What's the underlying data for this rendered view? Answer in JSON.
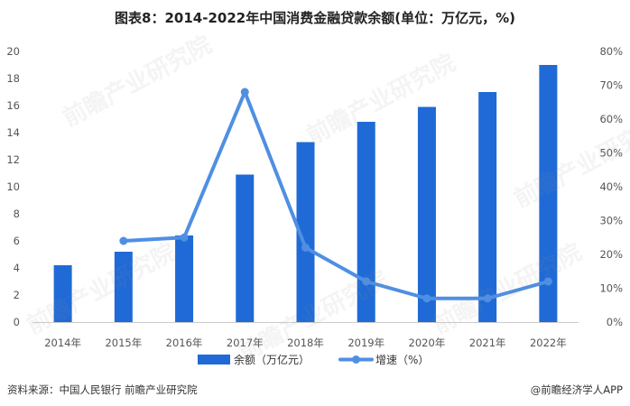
{
  "title": "图表8：2014-2022年中国消费金融贷款余额(单位：万亿元，%)",
  "source": "资料来源：中国人民银行 前瞻产业研究院",
  "brand": "@前瞻经济学人APP",
  "watermark": "前瞻产业研究院",
  "colors": {
    "bar": "#1f6ad6",
    "line": "#4f8fe3",
    "axis": "#cccccc"
  },
  "chart_data": {
    "type": "bar",
    "categories": [
      "2014年",
      "2015年",
      "2016年",
      "2017年",
      "2018年",
      "2019年",
      "2020年",
      "2021年",
      "2022年"
    ],
    "series": [
      {
        "name": "余额（万亿元）",
        "type": "bar",
        "axis": "left",
        "values": [
          4.2,
          5.2,
          6.4,
          10.9,
          13.3,
          14.8,
          15.9,
          17.0,
          19.0
        ]
      },
      {
        "name": "增速（%）",
        "type": "line",
        "axis": "right",
        "values": [
          null,
          24,
          25,
          68,
          22,
          12,
          7,
          7,
          12
        ]
      }
    ],
    "ylim_left": [
      0,
      20
    ],
    "yticks_left": [
      "0",
      "2",
      "4",
      "6",
      "8",
      "10",
      "12",
      "14",
      "16",
      "18",
      "20"
    ],
    "ylim_right": [
      0,
      80
    ],
    "yticks_right": [
      "0%",
      "10%",
      "20%",
      "30%",
      "40%",
      "50%",
      "60%",
      "70%",
      "80%"
    ],
    "legend_position": "bottom",
    "grid": false
  }
}
